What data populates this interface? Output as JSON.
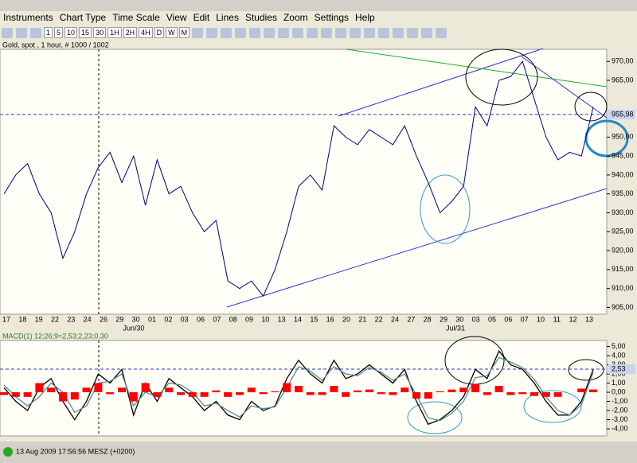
{
  "menu": [
    "Instruments",
    "Chart Type",
    "Time Scale",
    "View",
    "Edit",
    "Lines",
    "Studies",
    "Zoom",
    "Settings",
    "Help"
  ],
  "toolbar": [
    "1",
    "5",
    "10",
    "15",
    "30",
    "1H",
    "2H",
    "4H",
    "D",
    "W",
    "M"
  ],
  "status": "13 Aug 2009 17:56:56  MESZ (+0200)",
  "chart_data": [
    {
      "type": "line",
      "title": "Gold, spot , 1 hour, # 1000 / 1002",
      "color": "#000080",
      "values": [
        935,
        940,
        943,
        935,
        930,
        918,
        925,
        935,
        942,
        946,
        938,
        945,
        932,
        944,
        935,
        937,
        930,
        925,
        928,
        912,
        910,
        912,
        908,
        915,
        925,
        937,
        940,
        936,
        953,
        950,
        948,
        952,
        950,
        948,
        953,
        945,
        938,
        930,
        933,
        937,
        958,
        953,
        965,
        966,
        970,
        960,
        950,
        944,
        946,
        945,
        958
      ],
      "ylim": [
        903.2,
        973.2
      ],
      "yticks": [
        {
          "value": 970,
          "label": "970,00"
        },
        {
          "value": 965,
          "label": "965,00"
        },
        {
          "value": 950,
          "label": "950,00"
        },
        {
          "value": 945,
          "label": "945,00"
        },
        {
          "value": 940,
          "label": "940,00"
        },
        {
          "value": 935,
          "label": "935,00"
        },
        {
          "value": 930,
          "label": "930,00"
        },
        {
          "value": 925,
          "label": "925,00"
        },
        {
          "value": 920,
          "label": "920,00"
        },
        {
          "value": 915,
          "label": "915,00"
        },
        {
          "value": 910,
          "label": "910,00"
        },
        {
          "value": 905,
          "label": "905,00"
        }
      ],
      "current": {
        "value": 955.98,
        "label": "955,98"
      },
      "date_ticks": [
        "17",
        "18",
        "19",
        "22",
        "23",
        "24",
        "26",
        "29",
        "30",
        "01",
        "02",
        "03",
        "06",
        "07",
        "08",
        "09",
        "10",
        "13",
        "14",
        "15",
        "16",
        "20",
        "21",
        "22",
        "24",
        "27",
        "28",
        "29",
        "30",
        "03",
        "05",
        "06",
        "07",
        "10",
        "11",
        "12",
        "13"
      ],
      "month_labels": [
        "Jun/30",
        "Jul/31"
      ]
    },
    {
      "type": "line",
      "title": "MACD(1) 12;26;9=2,53;2,23;0,30",
      "series": [
        {
          "color": "#000000",
          "values": [
            0.5,
            -1,
            -2,
            0.5,
            1.5,
            -1,
            -3,
            -1,
            2,
            1,
            2.5,
            -2.5,
            1,
            -1,
            1.5,
            0.5,
            -0.5,
            -2,
            -1,
            -2.5,
            -3,
            -1,
            -2,
            -1.5,
            1.5,
            3.5,
            2,
            1,
            3.5,
            1.5,
            2,
            3,
            2,
            1,
            2.5,
            -1,
            -3.5,
            -3,
            -2,
            -0.5,
            2.5,
            1.5,
            4.5,
            3,
            2.5,
            1,
            -1,
            -2.5,
            -2.5,
            -1,
            2.5
          ]
        },
        {
          "color": "#5a8c8c",
          "values": [
            0.8,
            -0.5,
            -1.5,
            -0.5,
            1,
            0,
            -2.2,
            -1.5,
            1,
            1.2,
            2,
            -1.5,
            0,
            -0.5,
            1,
            0.8,
            0,
            -1.5,
            -1.2,
            -2,
            -2.7,
            -1.5,
            -1.8,
            -1.6,
            0.5,
            2.8,
            2.3,
            1.3,
            2.8,
            2,
            1.8,
            2.7,
            2.2,
            1.3,
            2,
            -0.3,
            -2.8,
            -3.1,
            -2.3,
            -1,
            1.6,
            1.8,
            3.8,
            3.3,
            2.7,
            1.4,
            -0.5,
            -2,
            -2.5,
            -1.4,
            2.2
          ]
        },
        {
          "type": "bar",
          "color": "#ff0000",
          "values": [
            -0.3,
            -0.5,
            -0.5,
            1,
            0.5,
            -1,
            -0.8,
            0.5,
            1,
            -0.2,
            0.5,
            -1,
            1,
            -0.5,
            0.5,
            -0.3,
            -0.5,
            -0.5,
            0.2,
            -0.5,
            -0.3,
            0.5,
            -0.2,
            0.1,
            1,
            0.7,
            -0.3,
            -0.3,
            0.7,
            -0.5,
            0.2,
            0.3,
            -0.2,
            -0.3,
            0.5,
            -0.7,
            -0.7,
            0.1,
            0.3,
            0.5,
            0.9,
            -0.3,
            0.7,
            -0.3,
            -0.2,
            -0.4,
            -0.5,
            -0.5,
            0,
            0.4,
            0.3
          ]
        }
      ],
      "ylim": [
        -4.78,
        5.66
      ],
      "yticks": [
        {
          "value": 5,
          "label": "5,00"
        },
        {
          "value": 4,
          "label": "4,00"
        },
        {
          "value": 3,
          "label": "3,00"
        },
        {
          "value": 2,
          "label": "2,00"
        },
        {
          "value": 1,
          "label": "1,00"
        },
        {
          "value": 0,
          "label": "0,00"
        },
        {
          "value": -1,
          "label": "-1,00"
        },
        {
          "value": -2,
          "label": "-2,00"
        },
        {
          "value": -3,
          "label": "-3,00"
        },
        {
          "value": -4,
          "label": "-4,00"
        }
      ],
      "current": {
        "value": 2.53,
        "label": "2,53"
      }
    }
  ]
}
